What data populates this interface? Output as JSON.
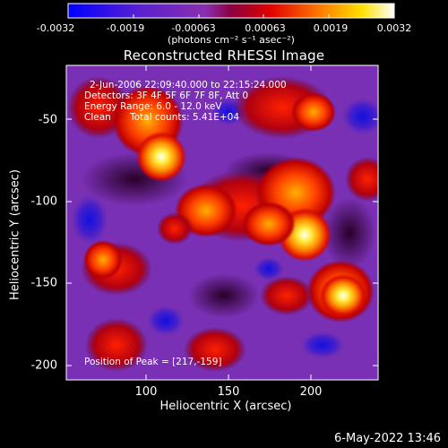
{
  "colorbar": {
    "tick_labels": [
      "-0.0032",
      "-0.0019",
      "-0.00063",
      "0.00063",
      "0.0019",
      "0.0032"
    ],
    "unit_label": "(photons cm⁻² s⁻¹ asec⁻²)",
    "range": [
      -0.0032,
      0.0032
    ]
  },
  "plot": {
    "title": "Reconstructed RHESSI Image",
    "xlabel": "Heliocentric X (arcsec)",
    "ylabel": "Heliocentric Y (arcsec)",
    "x_ticks": [
      "100",
      "150",
      "200"
    ],
    "y_ticks": [
      "-50",
      "-100",
      "-150",
      "-200"
    ],
    "xlim": [
      54,
      244
    ],
    "ylim": [
      -213,
      -22
    ]
  },
  "annotations": {
    "time_range": "2-Jun-2006 22:09:40.000 to 22:15:24.000",
    "detectors": "Detectors: 3F 4F 5F 6F 7F 8F, Att 0",
    "energy_range": "Energy Range: 6.0 - 12.0 keV",
    "algorithm": "Clean",
    "total_counts": "Total counts: 5.41E+04",
    "peak_position": "Position of Peak = [217,-159]"
  },
  "footer": {
    "date_stamp": "6-May-2022 13:46"
  }
}
